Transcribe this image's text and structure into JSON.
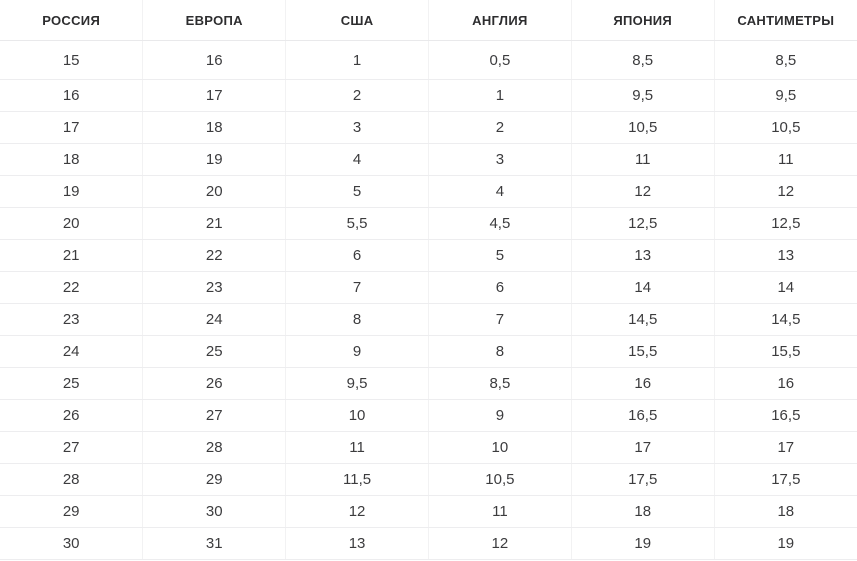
{
  "chart_data": {
    "type": "table",
    "title": "",
    "columns": [
      "РОССИЯ",
      "ЕВРОПА",
      "США",
      "АНГЛИЯ",
      "ЯПОНИЯ",
      "САНТИМЕТРЫ"
    ],
    "rows": [
      [
        "15",
        "16",
        "1",
        "0,5",
        "8,5",
        "8,5"
      ],
      [
        "16",
        "17",
        "2",
        "1",
        "9,5",
        "9,5"
      ],
      [
        "17",
        "18",
        "3",
        "2",
        "10,5",
        "10,5"
      ],
      [
        "18",
        "19",
        "4",
        "3",
        "11",
        "11"
      ],
      [
        "19",
        "20",
        "5",
        "4",
        "12",
        "12"
      ],
      [
        "20",
        "21",
        "5,5",
        "4,5",
        "12,5",
        "12,5"
      ],
      [
        "21",
        "22",
        "6",
        "5",
        "13",
        "13"
      ],
      [
        "22",
        "23",
        "7",
        "6",
        "14",
        "14"
      ],
      [
        "23",
        "24",
        "8",
        "7",
        "14,5",
        "14,5"
      ],
      [
        "24",
        "25",
        "9",
        "8",
        "15,5",
        "15,5"
      ],
      [
        "25",
        "26",
        "9,5",
        "8,5",
        "16",
        "16"
      ],
      [
        "26",
        "27",
        "10",
        "9",
        "16,5",
        "16,5"
      ],
      [
        "27",
        "28",
        "11",
        "10",
        "17",
        "17"
      ],
      [
        "28",
        "29",
        "11,5",
        "10,5",
        "17,5",
        "17,5"
      ],
      [
        "29",
        "30",
        "12",
        "11",
        "18",
        "18"
      ],
      [
        "30",
        "31",
        "13",
        "12",
        "19",
        "19"
      ]
    ],
    "layout": {
      "grid": "light-gray-separators",
      "header_position": "top",
      "columns_equal_width": true
    },
    "colors": {
      "header_text": "#2d2d2f",
      "cell_text": "#3c3c3e",
      "row_border": "#ededef",
      "column_border": "#f2f2f3",
      "background": "#ffffff"
    }
  }
}
